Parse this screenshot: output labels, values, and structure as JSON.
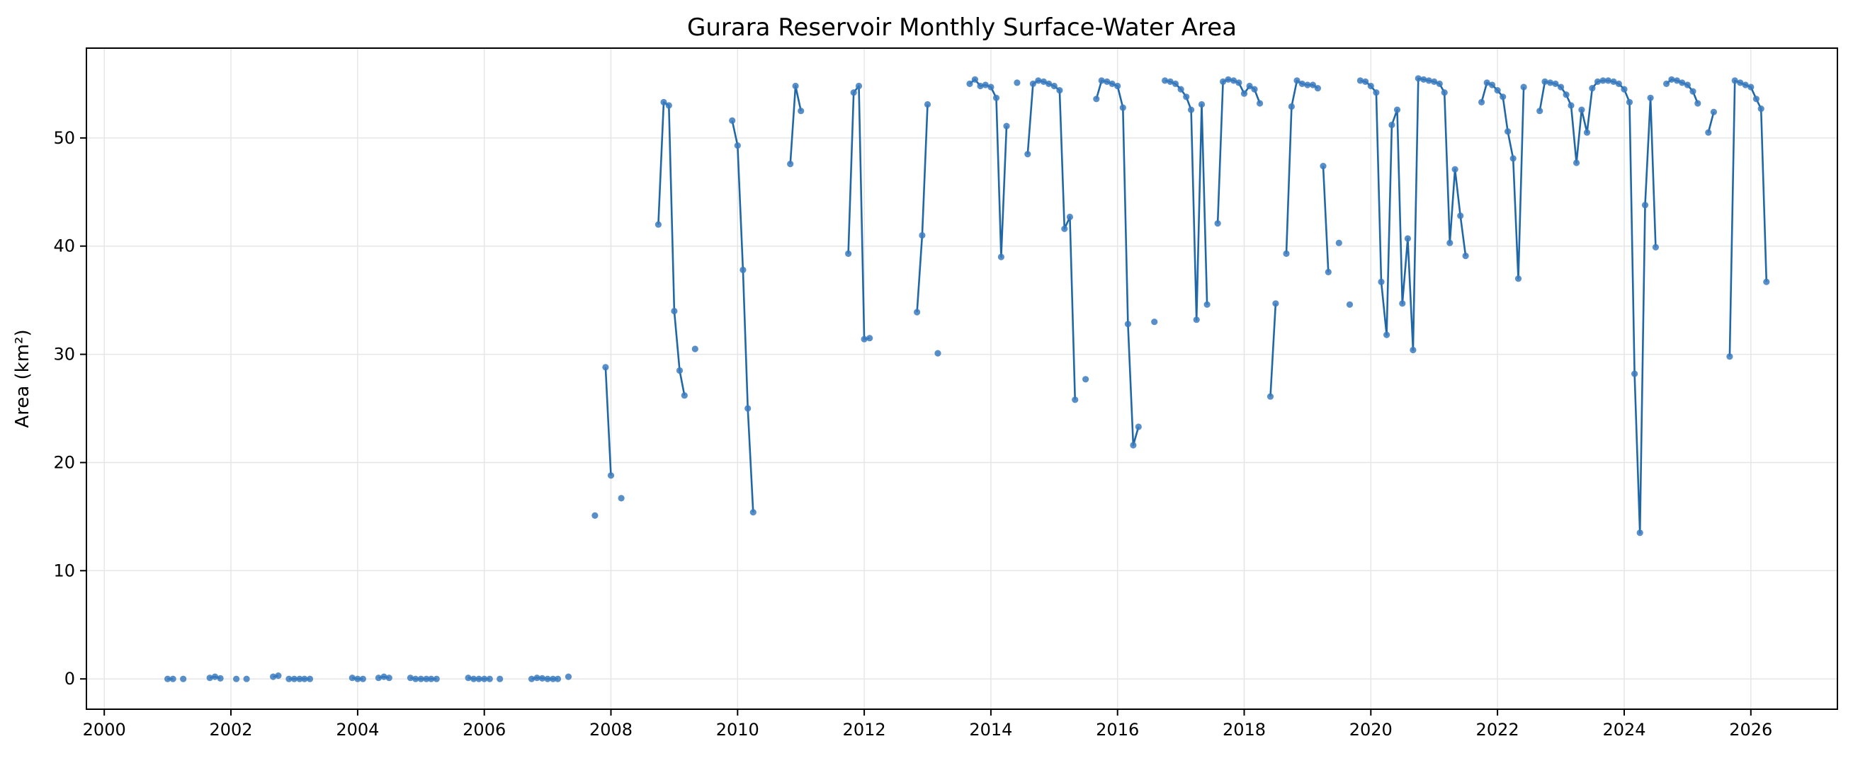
{
  "chart_data": {
    "type": "line",
    "title": "Gurara Reservoir Monthly Surface-Water Area",
    "xlabel": "",
    "ylabel": "Area (km²)",
    "x_type": "date",
    "xlim": [
      "1999-09-20",
      "2027-05-15"
    ],
    "ylim": [
      -2.8,
      58.3
    ],
    "x_ticks": [
      "2000",
      "2002",
      "2004",
      "2006",
      "2008",
      "2010",
      "2012",
      "2014",
      "2016",
      "2018",
      "2020",
      "2022",
      "2024",
      "2026"
    ],
    "y_ticks": [
      0,
      10,
      20,
      30,
      40,
      50
    ],
    "grid": true,
    "legend": "none",
    "colors": {
      "series": "#1f67a6",
      "marker": "#3b7bbf"
    },
    "series": [
      {
        "segments": [
          [
            [
              "2001-01",
              0
            ],
            [
              "2001-02",
              0
            ]
          ],
          [
            [
              "2001-04",
              0
            ]
          ],
          [
            [
              "2001-09",
              0.1
            ],
            [
              "2001-10",
              0.2
            ],
            [
              "2001-11",
              0.05
            ]
          ],
          [
            [
              "2002-02",
              0
            ]
          ],
          [
            [
              "2002-04",
              0
            ]
          ],
          [
            [
              "2002-09",
              0.2
            ],
            [
              "2002-10",
              0.3
            ]
          ],
          [
            [
              "2002-12",
              0
            ],
            [
              "2003-01",
              0
            ],
            [
              "2003-02",
              0
            ],
            [
              "2003-03",
              0
            ],
            [
              "2003-04",
              0
            ]
          ],
          [
            [
              "2003-12",
              0.1
            ],
            [
              "2004-01",
              0
            ],
            [
              "2004-02",
              0
            ]
          ],
          [
            [
              "2004-05",
              0.1
            ],
            [
              "2004-06",
              0.2
            ],
            [
              "2004-07",
              0.1
            ]
          ],
          [
            [
              "2004-11",
              0.1
            ],
            [
              "2004-12",
              0
            ],
            [
              "2005-01",
              0
            ],
            [
              "2005-02",
              0
            ],
            [
              "2005-03",
              0
            ],
            [
              "2005-04",
              0
            ]
          ],
          [
            [
              "2005-10",
              0.1
            ],
            [
              "2005-11",
              0
            ],
            [
              "2005-12",
              0
            ],
            [
              "2006-01",
              0
            ],
            [
              "2006-02",
              0
            ]
          ],
          [
            [
              "2006-04",
              0
            ]
          ],
          [
            [
              "2006-10",
              0
            ],
            [
              "2006-11",
              0.1
            ],
            [
              "2006-12",
              0.05
            ],
            [
              "2007-01",
              0
            ],
            [
              "2007-02",
              0
            ],
            [
              "2007-03",
              0
            ]
          ],
          [
            [
              "2007-05",
              0.2
            ]
          ],
          [
            [
              "2007-10",
              15.1
            ]
          ],
          [
            [
              "2007-12",
              28.8
            ],
            [
              "2008-01",
              18.8
            ]
          ],
          [
            [
              "2008-03",
              16.7
            ]
          ],
          [
            [
              "2008-10",
              42.0
            ],
            [
              "2008-11",
              53.3
            ],
            [
              "2008-12",
              53.0
            ],
            [
              "2009-01",
              34.0
            ],
            [
              "2009-02",
              28.5
            ],
            [
              "2009-03",
              26.2
            ]
          ],
          [
            [
              "2009-05",
              30.5
            ]
          ],
          [
            [
              "2009-12",
              51.6
            ],
            [
              "2010-01",
              49.3
            ],
            [
              "2010-02",
              37.8
            ],
            [
              "2010-03",
              25.0
            ],
            [
              "2010-04",
              15.4
            ]
          ],
          [
            [
              "2010-11",
              47.6
            ],
            [
              "2010-12",
              54.8
            ],
            [
              "2011-01",
              52.5
            ]
          ],
          [
            [
              "2011-10",
              39.3
            ],
            [
              "2011-11",
              54.2
            ],
            [
              "2011-12",
              54.8
            ],
            [
              "2012-01",
              31.4
            ],
            [
              "2012-02",
              31.5
            ]
          ],
          [
            [
              "2012-11",
              33.9
            ],
            [
              "2012-12",
              41.0
            ],
            [
              "2013-01",
              53.1
            ]
          ],
          [
            [
              "2013-03",
              30.1
            ]
          ],
          [
            [
              "2013-09",
              55.0
            ],
            [
              "2013-10",
              55.4
            ],
            [
              "2013-11",
              54.8
            ],
            [
              "2013-12",
              54.9
            ],
            [
              "2014-01",
              54.7
            ],
            [
              "2014-02",
              53.7
            ],
            [
              "2014-03",
              39.0
            ],
            [
              "2014-04",
              51.1
            ]
          ],
          [
            [
              "2014-06",
              55.1
            ]
          ],
          [
            [
              "2014-08",
              48.5
            ],
            [
              "2014-09",
              55.0
            ],
            [
              "2014-10",
              55.3
            ],
            [
              "2014-11",
              55.2
            ],
            [
              "2014-12",
              55.0
            ],
            [
              "2015-01",
              54.8
            ],
            [
              "2015-02",
              54.4
            ],
            [
              "2015-03",
              41.6
            ],
            [
              "2015-04",
              42.7
            ],
            [
              "2015-05",
              25.8
            ]
          ],
          [
            [
              "2015-07",
              27.7
            ]
          ],
          [
            [
              "2015-09",
              53.6
            ],
            [
              "2015-10",
              55.3
            ],
            [
              "2015-11",
              55.2
            ],
            [
              "2015-12",
              55.0
            ],
            [
              "2016-01",
              54.8
            ],
            [
              "2016-02",
              52.8
            ],
            [
              "2016-03",
              32.8
            ],
            [
              "2016-04",
              21.6
            ],
            [
              "2016-05",
              23.3
            ]
          ],
          [
            [
              "2016-08",
              33.0
            ]
          ],
          [
            [
              "2016-10",
              55.3
            ],
            [
              "2016-11",
              55.2
            ],
            [
              "2016-12",
              55.0
            ],
            [
              "2017-01",
              54.5
            ],
            [
              "2017-02",
              53.8
            ],
            [
              "2017-03",
              52.6
            ],
            [
              "2017-04",
              33.2
            ],
            [
              "2017-05",
              53.1
            ],
            [
              "2017-06",
              34.6
            ]
          ],
          [
            [
              "2017-08",
              42.1
            ],
            [
              "2017-09",
              55.2
            ],
            [
              "2017-10",
              55.4
            ],
            [
              "2017-11",
              55.3
            ],
            [
              "2017-12",
              55.1
            ],
            [
              "2018-01",
              54.1
            ],
            [
              "2018-02",
              54.8
            ],
            [
              "2018-03",
              54.5
            ],
            [
              "2018-04",
              53.2
            ]
          ],
          [
            [
              "2018-06",
              26.1
            ],
            [
              "2018-07",
              34.7
            ]
          ],
          [
            [
              "2018-09",
              39.3
            ],
            [
              "2018-10",
              52.9
            ],
            [
              "2018-11",
              55.3
            ],
            [
              "2018-12",
              55.0
            ],
            [
              "2019-01",
              54.9
            ],
            [
              "2019-02",
              54.9
            ],
            [
              "2019-03",
              54.6
            ]
          ],
          [
            [
              "2019-04",
              47.4
            ],
            [
              "2019-05",
              37.6
            ]
          ],
          [
            [
              "2019-07",
              40.3
            ]
          ],
          [
            [
              "2019-09",
              34.6
            ]
          ],
          [
            [
              "2019-11",
              55.3
            ],
            [
              "2019-12",
              55.2
            ],
            [
              "2020-01",
              54.8
            ],
            [
              "2020-02",
              54.2
            ],
            [
              "2020-03",
              36.7
            ],
            [
              "2020-04",
              31.8
            ],
            [
              "2020-05",
              51.2
            ],
            [
              "2020-06",
              52.6
            ],
            [
              "2020-07",
              34.7
            ],
            [
              "2020-08",
              40.7
            ],
            [
              "2020-09",
              30.4
            ],
            [
              "2020-10",
              55.5
            ],
            [
              "2020-11",
              55.4
            ],
            [
              "2020-12",
              55.3
            ],
            [
              "2021-01",
              55.2
            ],
            [
              "2021-02",
              55.0
            ],
            [
              "2021-03",
              54.2
            ],
            [
              "2021-04",
              40.3
            ],
            [
              "2021-05",
              47.1
            ],
            [
              "2021-06",
              42.8
            ],
            [
              "2021-07",
              39.1
            ]
          ],
          [
            [
              "2021-10",
              53.3
            ],
            [
              "2021-11",
              55.1
            ],
            [
              "2021-12",
              54.9
            ],
            [
              "2022-01",
              54.4
            ],
            [
              "2022-02",
              53.8
            ],
            [
              "2022-03",
              50.6
            ],
            [
              "2022-04",
              48.1
            ],
            [
              "2022-05",
              37.0
            ],
            [
              "2022-06",
              54.7
            ]
          ],
          [
            [
              "2022-09",
              52.5
            ],
            [
              "2022-10",
              55.2
            ],
            [
              "2022-11",
              55.1
            ],
            [
              "2022-12",
              55.0
            ],
            [
              "2023-01",
              54.7
            ],
            [
              "2023-02",
              54.0
            ],
            [
              "2023-03",
              53.0
            ],
            [
              "2023-04",
              47.7
            ],
            [
              "2023-05",
              52.6
            ],
            [
              "2023-06",
              50.5
            ],
            [
              "2023-07",
              54.6
            ],
            [
              "2023-08",
              55.2
            ],
            [
              "2023-09",
              55.3
            ],
            [
              "2023-10",
              55.3
            ],
            [
              "2023-11",
              55.2
            ],
            [
              "2023-12",
              55.0
            ],
            [
              "2024-01",
              54.5
            ],
            [
              "2024-02",
              53.3
            ],
            [
              "2024-03",
              28.2
            ],
            [
              "2024-04",
              13.5
            ],
            [
              "2024-05",
              43.8
            ],
            [
              "2024-06",
              53.7
            ],
            [
              "2024-07",
              39.9
            ]
          ],
          [
            [
              "2024-09",
              55.0
            ],
            [
              "2024-10",
              55.4
            ],
            [
              "2024-11",
              55.3
            ],
            [
              "2024-12",
              55.1
            ],
            [
              "2025-01",
              54.9
            ],
            [
              "2025-02",
              54.3
            ],
            [
              "2025-03",
              53.2
            ]
          ],
          [
            [
              "2025-05",
              50.5
            ],
            [
              "2025-06",
              52.4
            ]
          ],
          [
            [
              "2025-09",
              29.8
            ],
            [
              "2025-10",
              55.3
            ],
            [
              "2025-11",
              55.1
            ],
            [
              "2025-12",
              54.9
            ],
            [
              "2026-01",
              54.7
            ],
            [
              "2026-02",
              53.6
            ],
            [
              "2026-03",
              52.7
            ],
            [
              "2026-04",
              36.7
            ]
          ]
        ]
      }
    ]
  }
}
